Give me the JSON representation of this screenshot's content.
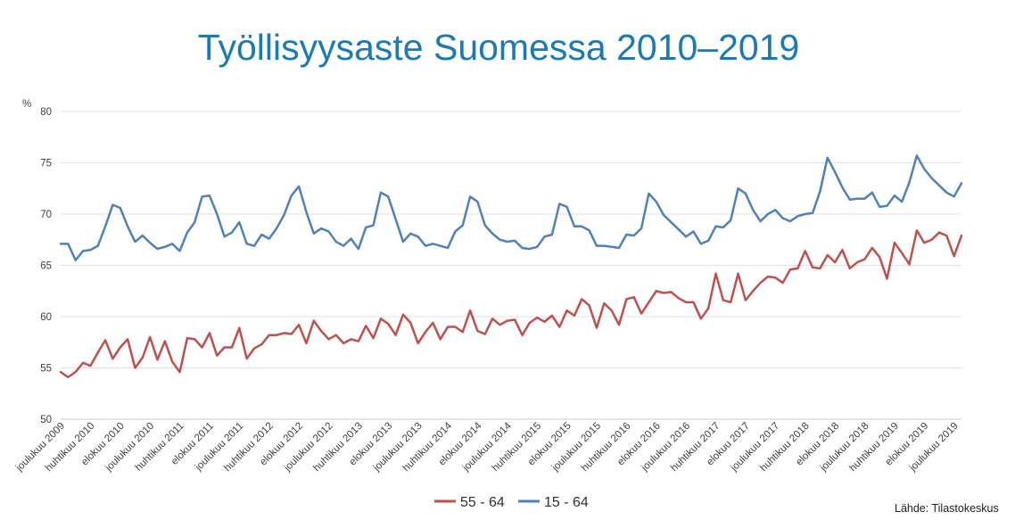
{
  "chart_data": {
    "type": "line",
    "title": "Työllisyysaste Suomessa 2010–2019",
    "ylabel": "%",
    "xlabel": "",
    "ylim": [
      50,
      80
    ],
    "yticks": [
      50,
      55,
      60,
      65,
      70,
      75,
      80
    ],
    "grid": true,
    "legend_position": "bottom-center",
    "source": "Lähde: Tilastokeskus",
    "x_tick_labels": [
      "joulukuu 2009",
      "huhtikuu 2010",
      "elokuu 2010",
      "joulukuu 2010",
      "huhtikuu 2011",
      "elokuu 2011",
      "joulukuu 2011",
      "huhtikuu 2012",
      "elokuu 2012",
      "joulukuu 2012",
      "huhtikuu 2013",
      "elokuu 2013",
      "joulukuu 2013",
      "huhtikuu 2014",
      "elokuu 2014",
      "joulukuu 2014",
      "huhtikuu 2015",
      "elokuu 2015",
      "joulukuu 2015",
      "huhtikuu 2016",
      "elokuu 2016",
      "joulukuu 2016",
      "huhtikuu 2017",
      "elokuu 2017",
      "joulukuu 2017",
      "huhtikuu 2018",
      "elokuu 2018",
      "joulukuu 2018",
      "huhtikuu 2019",
      "elokuu 2019",
      "joulukuu 2019"
    ],
    "x_start": "2009-12",
    "x_end": "2019-12",
    "series": [
      {
        "name": "55 - 64",
        "color": "#c0504d",
        "values": [
          54.6,
          54.1,
          54.6,
          55.5,
          55.2,
          56.5,
          57.7,
          55.9,
          57.0,
          57.8,
          55.0,
          56.0,
          58.0,
          55.8,
          57.6,
          55.6,
          54.6,
          57.9,
          57.8,
          57.0,
          58.4,
          56.2,
          57.0,
          57.0,
          58.9,
          55.9,
          56.9,
          57.3,
          58.2,
          58.2,
          58.4,
          58.3,
          59.2,
          57.4,
          59.6,
          58.6,
          57.8,
          58.2,
          57.4,
          57.8,
          57.6,
          59.1,
          57.9,
          59.8,
          59.3,
          58.2,
          60.2,
          59.4,
          57.4,
          58.5,
          59.4,
          57.8,
          59.0,
          59.0,
          58.5,
          60.6,
          58.6,
          58.3,
          59.8,
          59.2,
          59.6,
          59.7,
          58.2,
          59.4,
          59.9,
          59.5,
          60.1,
          59.0,
          60.6,
          60.1,
          61.7,
          61.1,
          58.9,
          61.3,
          60.6,
          59.2,
          61.7,
          61.9,
          60.3,
          61.4,
          62.5,
          62.3,
          62.4,
          61.8,
          61.4,
          61.4,
          59.8,
          60.8,
          64.2,
          61.6,
          61.4,
          64.2,
          61.6,
          62.5,
          63.3,
          63.9,
          63.8,
          63.3,
          64.6,
          64.7,
          66.4,
          64.8,
          64.7,
          66.0,
          65.3,
          66.5,
          64.7,
          65.3,
          65.6,
          66.7,
          65.8,
          63.7,
          67.2,
          66.2,
          65.1,
          68.4,
          67.2,
          67.5,
          68.2,
          67.9,
          65.9,
          67.9
        ]
      },
      {
        "name": "15 - 64",
        "color": "#4f81bd",
        "values": [
          67.1,
          67.1,
          65.5,
          66.4,
          66.5,
          66.9,
          68.8,
          70.9,
          70.6,
          68.8,
          67.3,
          67.9,
          67.2,
          66.6,
          66.8,
          67.1,
          66.4,
          68.2,
          69.2,
          71.7,
          71.8,
          70.0,
          67.8,
          68.2,
          69.2,
          67.1,
          66.9,
          68.0,
          67.6,
          68.6,
          69.9,
          71.8,
          72.7,
          70.2,
          68.1,
          68.6,
          68.3,
          67.3,
          66.9,
          67.6,
          66.6,
          68.7,
          68.9,
          72.1,
          71.7,
          69.5,
          67.3,
          68.1,
          67.8,
          66.9,
          67.1,
          66.9,
          66.7,
          68.3,
          68.9,
          71.7,
          71.2,
          68.9,
          68.1,
          67.5,
          67.3,
          67.4,
          66.7,
          66.6,
          66.8,
          67.8,
          68.0,
          71.0,
          70.7,
          68.8,
          68.8,
          68.4,
          66.9,
          66.9,
          66.8,
          66.7,
          68.0,
          67.9,
          68.6,
          72.0,
          71.2,
          69.9,
          69.2,
          68.5,
          67.8,
          68.3,
          67.1,
          67.4,
          68.8,
          68.7,
          69.4,
          72.5,
          72.0,
          70.4,
          69.3,
          70.0,
          70.4,
          69.6,
          69.3,
          69.8,
          70.0,
          70.1,
          72.2,
          75.5,
          74.1,
          72.6,
          71.4,
          71.5,
          71.5,
          72.1,
          70.7,
          70.8,
          71.8,
          71.2,
          73.1,
          75.7,
          74.4,
          73.5,
          72.8,
          72.1,
          71.7,
          73.0
        ]
      }
    ]
  }
}
